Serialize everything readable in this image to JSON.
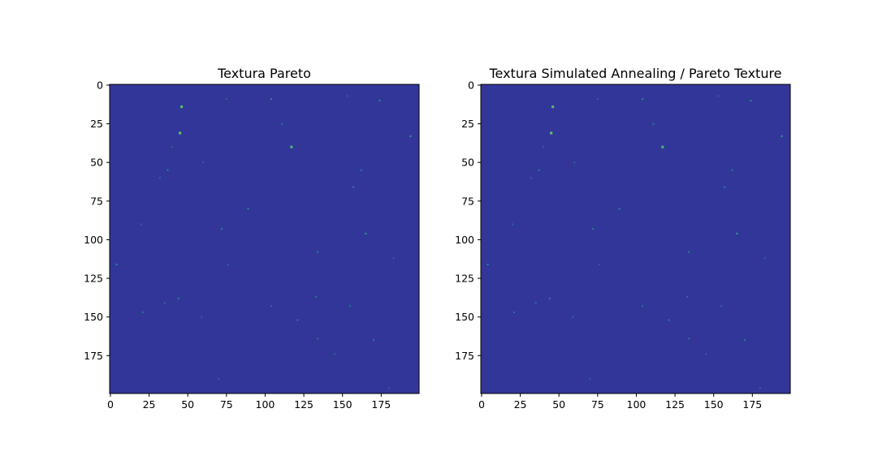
{
  "chart_data": [
    {
      "type": "heatmap",
      "title": "Textura Pareto",
      "colormap": "viridis-like",
      "background_color": "#333699",
      "xlim": [
        0,
        199
      ],
      "ylim": [
        199,
        0
      ],
      "x_ticks": [
        0,
        25,
        50,
        75,
        100,
        125,
        150,
        175
      ],
      "y_ticks": [
        0,
        25,
        50,
        75,
        100,
        125,
        150,
        175
      ],
      "grid": false,
      "points": [
        {
          "x": 46,
          "y": 14,
          "v": 0.9
        },
        {
          "x": 45,
          "y": 31,
          "v": 1.0
        },
        {
          "x": 117,
          "y": 40,
          "v": 0.8
        },
        {
          "x": 104,
          "y": 9,
          "v": 0.35
        },
        {
          "x": 174,
          "y": 10,
          "v": 0.35
        },
        {
          "x": 194,
          "y": 33,
          "v": 0.55
        },
        {
          "x": 111,
          "y": 25,
          "v": 0.3
        },
        {
          "x": 37,
          "y": 55,
          "v": 0.35
        },
        {
          "x": 162,
          "y": 55,
          "v": 0.3
        },
        {
          "x": 157,
          "y": 66,
          "v": 0.3
        },
        {
          "x": 89,
          "y": 80,
          "v": 0.35
        },
        {
          "x": 72,
          "y": 93,
          "v": 0.3
        },
        {
          "x": 165,
          "y": 96,
          "v": 0.55
        },
        {
          "x": 134,
          "y": 108,
          "v": 0.3
        },
        {
          "x": 4,
          "y": 116,
          "v": 0.35
        },
        {
          "x": 44,
          "y": 138,
          "v": 0.3
        },
        {
          "x": 35,
          "y": 141,
          "v": 0.25
        },
        {
          "x": 21,
          "y": 147,
          "v": 0.25
        },
        {
          "x": 121,
          "y": 152,
          "v": 0.3
        },
        {
          "x": 133,
          "y": 137,
          "v": 0.25
        },
        {
          "x": 104,
          "y": 143,
          "v": 0.25
        },
        {
          "x": 155,
          "y": 143,
          "v": 0.25
        },
        {
          "x": 170,
          "y": 165,
          "v": 0.3
        },
        {
          "x": 134,
          "y": 164,
          "v": 0.25
        },
        {
          "x": 75,
          "y": 9,
          "v": 0.2
        },
        {
          "x": 153,
          "y": 7,
          "v": 0.2
        },
        {
          "x": 40,
          "y": 40,
          "v": 0.2
        },
        {
          "x": 32,
          "y": 60,
          "v": 0.2
        },
        {
          "x": 60,
          "y": 50,
          "v": 0.2
        },
        {
          "x": 76,
          "y": 116,
          "v": 0.2
        },
        {
          "x": 59,
          "y": 150,
          "v": 0.2
        },
        {
          "x": 20,
          "y": 90,
          "v": 0.2
        },
        {
          "x": 183,
          "y": 112,
          "v": 0.2
        },
        {
          "x": 145,
          "y": 174,
          "v": 0.2
        },
        {
          "x": 70,
          "y": 190,
          "v": 0.2
        },
        {
          "x": 180,
          "y": 196,
          "v": 0.2
        }
      ]
    },
    {
      "type": "heatmap",
      "title": "Textura Simulated Annealing / Pareto Texture",
      "colormap": "viridis-like",
      "background_color": "#333699",
      "xlim": [
        0,
        199
      ],
      "ylim": [
        199,
        0
      ],
      "x_ticks": [
        0,
        25,
        50,
        75,
        100,
        125,
        150,
        175
      ],
      "y_ticks": [
        0,
        25,
        50,
        75,
        100,
        125,
        150,
        175
      ],
      "grid": false,
      "points": [
        {
          "x": 46,
          "y": 14,
          "v": 0.9
        },
        {
          "x": 45,
          "y": 31,
          "v": 1.0
        },
        {
          "x": 117,
          "y": 40,
          "v": 0.8
        },
        {
          "x": 104,
          "y": 9,
          "v": 0.35
        },
        {
          "x": 174,
          "y": 10,
          "v": 0.35
        },
        {
          "x": 194,
          "y": 33,
          "v": 0.55
        },
        {
          "x": 111,
          "y": 25,
          "v": 0.3
        },
        {
          "x": 37,
          "y": 55,
          "v": 0.35
        },
        {
          "x": 162,
          "y": 55,
          "v": 0.3
        },
        {
          "x": 157,
          "y": 66,
          "v": 0.3
        },
        {
          "x": 89,
          "y": 80,
          "v": 0.35
        },
        {
          "x": 72,
          "y": 93,
          "v": 0.3
        },
        {
          "x": 165,
          "y": 96,
          "v": 0.55
        },
        {
          "x": 134,
          "y": 108,
          "v": 0.3
        },
        {
          "x": 4,
          "y": 116,
          "v": 0.35
        },
        {
          "x": 44,
          "y": 138,
          "v": 0.3
        },
        {
          "x": 35,
          "y": 141,
          "v": 0.25
        },
        {
          "x": 21,
          "y": 147,
          "v": 0.25
        },
        {
          "x": 121,
          "y": 152,
          "v": 0.3
        },
        {
          "x": 133,
          "y": 137,
          "v": 0.25
        },
        {
          "x": 104,
          "y": 143,
          "v": 0.25
        },
        {
          "x": 155,
          "y": 143,
          "v": 0.25
        },
        {
          "x": 170,
          "y": 165,
          "v": 0.3
        },
        {
          "x": 134,
          "y": 164,
          "v": 0.25
        },
        {
          "x": 75,
          "y": 9,
          "v": 0.2
        },
        {
          "x": 153,
          "y": 7,
          "v": 0.2
        },
        {
          "x": 40,
          "y": 40,
          "v": 0.2
        },
        {
          "x": 32,
          "y": 60,
          "v": 0.2
        },
        {
          "x": 60,
          "y": 50,
          "v": 0.2
        },
        {
          "x": 76,
          "y": 116,
          "v": 0.2
        },
        {
          "x": 59,
          "y": 150,
          "v": 0.2
        },
        {
          "x": 20,
          "y": 90,
          "v": 0.2
        },
        {
          "x": 183,
          "y": 112,
          "v": 0.2
        },
        {
          "x": 145,
          "y": 174,
          "v": 0.2
        },
        {
          "x": 70,
          "y": 190,
          "v": 0.2
        },
        {
          "x": 180,
          "y": 196,
          "v": 0.2
        }
      ]
    }
  ]
}
